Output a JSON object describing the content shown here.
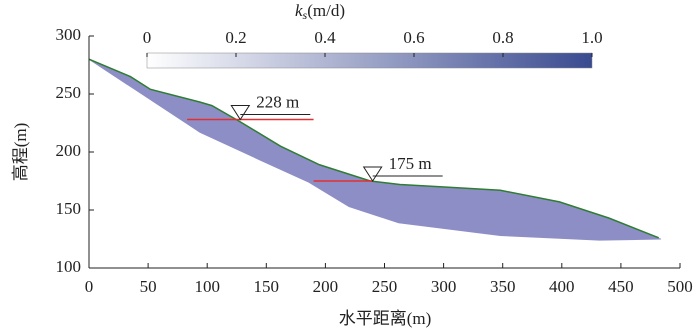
{
  "chart_data": {
    "type": "profile",
    "xlabel": "水平距离(m)",
    "ylabel": "高程(m)",
    "xlim": [
      0,
      500
    ],
    "xticks": [
      0,
      50,
      100,
      150,
      200,
      250,
      300,
      350,
      400,
      450,
      500
    ],
    "ylim": [
      100,
      300
    ],
    "yticks": [
      100,
      150,
      200,
      250,
      300
    ],
    "surface": {
      "color": "#2e7d32",
      "x": [
        0,
        35,
        52,
        94,
        104,
        128,
        162,
        195,
        238,
        263,
        297,
        348,
        398,
        440,
        482
      ],
      "y": [
        280,
        265,
        254,
        243,
        240,
        226,
        205,
        189,
        175,
        172,
        170,
        167,
        157,
        143,
        126
      ]
    },
    "bottom": {
      "x": [
        0,
        94,
        145,
        186,
        220,
        262,
        348,
        432,
        484
      ],
      "y": [
        280,
        217,
        193,
        174,
        153,
        139,
        128,
        124,
        125
      ]
    },
    "fill_color": "#8e8ec6",
    "water_levels": [
      {
        "label": "228 m",
        "value": 228,
        "x": [
          83,
          190
        ],
        "marker_x": 128,
        "color": "#e03030"
      },
      {
        "label": "175 m",
        "value": 175,
        "x": [
          190,
          240
        ],
        "marker_x": 240,
        "color": "#e03030"
      }
    ],
    "colorbar": {
      "symbol": "k",
      "subscript": "s",
      "unit": "(m/d)",
      "lim": [
        0,
        1
      ],
      "ticks": [
        0,
        0.2,
        0.4,
        0.6,
        0.8,
        {
          "value": 1,
          "label": "1.0"
        }
      ],
      "colors": [
        "#ffffff",
        "#3a4a90"
      ]
    }
  }
}
